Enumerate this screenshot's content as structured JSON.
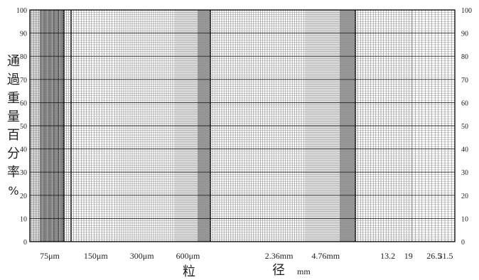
{
  "chart_data": {
    "type": "line",
    "title": "",
    "ylabel": "通過重量百分率 %",
    "ylabel_chars": [
      "通",
      "過",
      "重",
      "量",
      "百",
      "分",
      "率",
      "%"
    ],
    "xlabel": "粒 径 mm",
    "xlabel_parts": [
      "粒",
      "径",
      "mm"
    ],
    "ylim": [
      0,
      100
    ],
    "yticks": [
      0,
      10,
      20,
      30,
      40,
      50,
      60,
      70,
      80,
      90,
      100
    ],
    "x_scale": "log",
    "x_ticks": [
      "75μm",
      "150μm",
      "300μm",
      "600μm",
      "2.36mm",
      "4.76mm",
      "13.2",
      "19",
      "26.5",
      "31.5"
    ],
    "grid": true,
    "series": []
  }
}
